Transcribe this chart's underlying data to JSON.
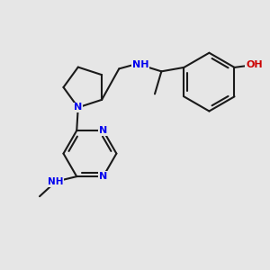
{
  "bg_color": "#e6e6e6",
  "bond_color": "#1a1a1a",
  "nitrogen_color": "#0000ee",
  "oxygen_color": "#cc0000",
  "font_size_atom": 8.0,
  "line_width": 1.5,
  "figsize": [
    3.0,
    3.0
  ],
  "dpi": 100,
  "xlim": [
    0,
    10
  ],
  "ylim": [
    0,
    10
  ]
}
